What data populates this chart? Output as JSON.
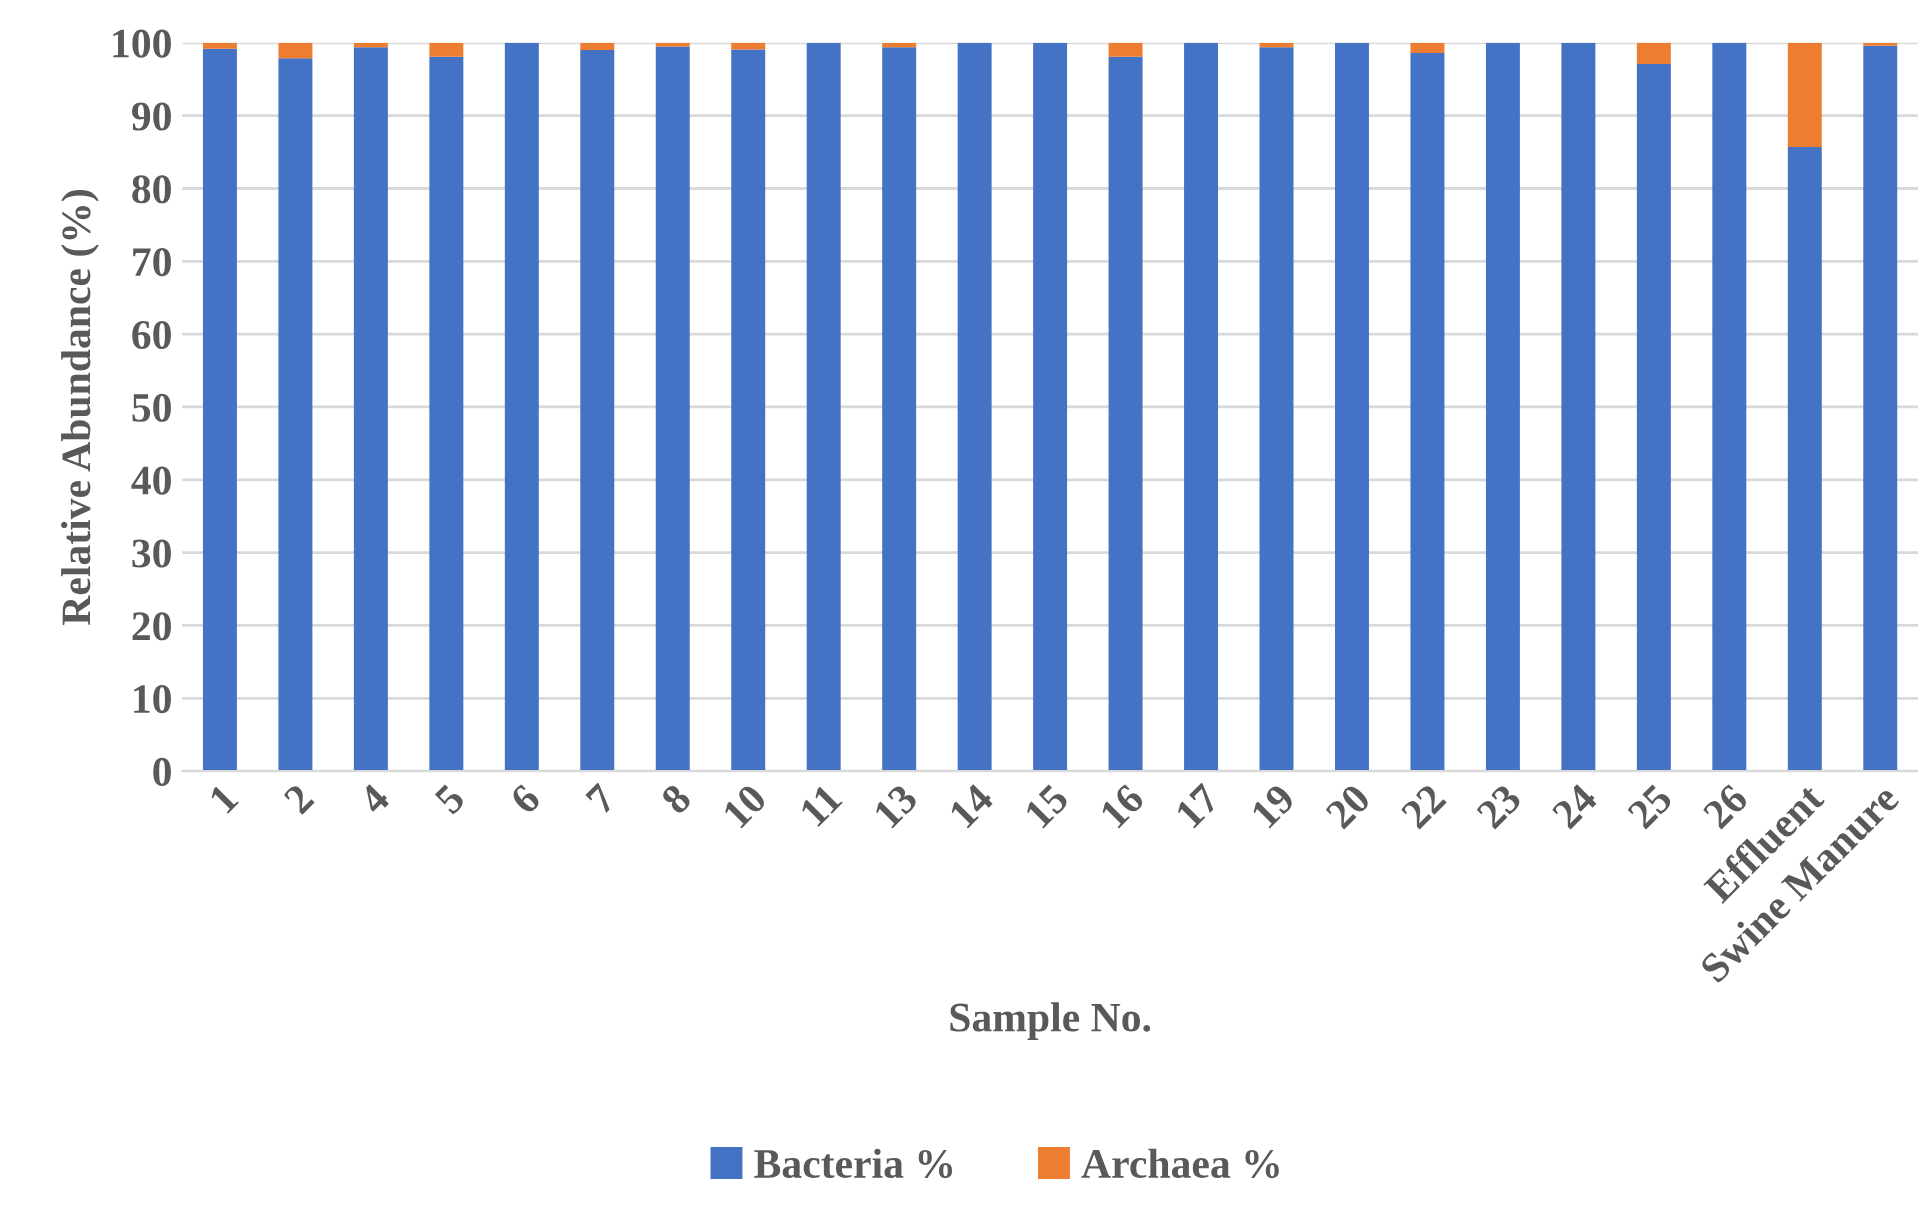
{
  "chart_data": {
    "type": "bar",
    "stacked": true,
    "xlabel": "Sample No.",
    "ylabel": "Relative Abundance (%)",
    "categories": [
      "1",
      "2",
      "4",
      "5",
      "6",
      "7",
      "8",
      "10",
      "11",
      "13",
      "14",
      "15",
      "16",
      "17",
      "19",
      "20",
      "22",
      "23",
      "24",
      "25",
      "26",
      "Effluent",
      "Swine Manure"
    ],
    "series": [
      {
        "name": "Bacteria %",
        "color": "#4472c4",
        "values": [
          99.2,
          97.9,
          99.4,
          98.1,
          100,
          99.0,
          99.5,
          99.1,
          100,
          99.4,
          100,
          100,
          98.1,
          100,
          99.4,
          100,
          98.6,
          100,
          100,
          97.1,
          100,
          85.7,
          99.6
        ]
      },
      {
        "name": "Archaea %",
        "color": "#ed7d31",
        "values": [
          0.8,
          2.1,
          0.6,
          1.9,
          0,
          1.0,
          0.5,
          0.9,
          0,
          0.6,
          0,
          0,
          1.9,
          0,
          0.6,
          0,
          1.4,
          0,
          0,
          2.9,
          0,
          14.3,
          0.4
        ]
      }
    ],
    "ylim": [
      0,
      100
    ],
    "yticks": [
      0,
      10,
      20,
      30,
      40,
      50,
      60,
      70,
      80,
      90,
      100
    ],
    "grid": "y",
    "legend": "bottom"
  }
}
